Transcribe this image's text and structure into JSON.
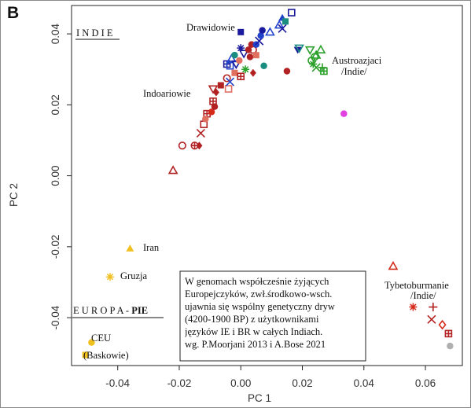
{
  "figure_label": "B",
  "chart_data": {
    "type": "scatter",
    "xlabel": "PC 1",
    "ylabel": "PC 2",
    "xlim": [
      -0.055,
      0.072
    ],
    "ylim": [
      -0.0535,
      0.048
    ],
    "xticks": [
      "-0.04",
      "-0.02",
      "0.00",
      "0.02",
      "0.04",
      "0.06"
    ],
    "yticks": [
      "-0.04",
      "-0.02",
      "0.00",
      "0.02",
      "0.04"
    ],
    "xtick_values": [
      -0.04,
      -0.02,
      0.0,
      0.02,
      0.04,
      0.06
    ],
    "ytick_values": [
      -0.04,
      -0.02,
      0.0,
      0.02,
      0.04
    ],
    "grid": false,
    "group_labels": {
      "indie": "I N D I E",
      "drawidowie": "Drawidowie",
      "austroazjaci": "Austroazjaci",
      "austroazjaci_2": "/Indie/",
      "indoariowie": "Indoariowie",
      "iran": "Iran",
      "gruzja": "Gruzja",
      "europa_prefix": "E U R O P A  - ",
      "europa_pie": "PIE",
      "ceu": "CEU",
      "baskowie": "(Baskowie)",
      "tybetoburmanie": "Tybetoburmanie",
      "tybetoburmanie_2": "/Indie/"
    },
    "annotation": [
      "W genomach współcześnie żyjących",
      "Europejczyków, zwł.środkowo-wsch.",
      "ujawnia się wspólny genetyczny dryw",
      "(4200-1900 BP) z użytkownikami",
      "języków IE i BR w całych Indiach.",
      "wg. P.Moorjani 2013 i A.Bose 2021"
    ],
    "colors": {
      "dark_red": "#b22222",
      "red": "#d42a1a",
      "navy": "#1a1a9c",
      "blue": "#2244cc",
      "teal": "#1a8c80",
      "green": "#2aa02a",
      "magenta": "#e040e0",
      "gold": "#f0c020",
      "grey": "#b0b0b0",
      "salmon": "#e07060"
    },
    "series": [
      {
        "group": "Europa",
        "points": [
          {
            "x": -0.036,
            "y": -0.0205,
            "shape": "triangle-filled",
            "color": "gold"
          },
          {
            "x": -0.0425,
            "y": -0.0285,
            "shape": "star",
            "color": "gold"
          },
          {
            "x": -0.0485,
            "y": -0.047,
            "shape": "circle-filled",
            "color": "gold"
          },
          {
            "x": -0.0505,
            "y": -0.0505,
            "shape": "square-filled",
            "color": "gold"
          }
        ]
      },
      {
        "group": "Indie",
        "points": [
          {
            "x": -0.022,
            "y": 0.0015,
            "shape": "triangle-open",
            "color": "dark_red"
          },
          {
            "x": -0.019,
            "y": 0.0085,
            "shape": "circle-open",
            "color": "dark_red"
          },
          {
            "x": -0.015,
            "y": 0.0085,
            "shape": "circle-cross",
            "color": "dark_red"
          },
          {
            "x": -0.0135,
            "y": 0.0085,
            "shape": "diamond-filled",
            "color": "dark_red"
          },
          {
            "x": -0.013,
            "y": 0.012,
            "shape": "x",
            "color": "dark_red"
          },
          {
            "x": -0.012,
            "y": 0.0145,
            "shape": "square-open",
            "color": "dark_red"
          },
          {
            "x": -0.011,
            "y": 0.0175,
            "shape": "square-cross",
            "color": "dark_red"
          },
          {
            "x": -0.0115,
            "y": 0.016,
            "shape": "circle-filled",
            "color": "salmon"
          },
          {
            "x": -0.0095,
            "y": 0.018,
            "shape": "circle-filled",
            "color": "red"
          },
          {
            "x": -0.009,
            "y": 0.021,
            "shape": "square-cross",
            "color": "dark_red"
          },
          {
            "x": -0.0085,
            "y": 0.0195,
            "shape": "circle-filled",
            "color": "dark_red"
          },
          {
            "x": -0.008,
            "y": 0.0235,
            "shape": "diamond-filled",
            "color": "dark_red"
          },
          {
            "x": -0.009,
            "y": 0.0245,
            "shape": "triangle-down-open",
            "color": "dark_red"
          },
          {
            "x": -0.0065,
            "y": 0.0255,
            "shape": "square-filled",
            "color": "dark_red"
          },
          {
            "x": -0.0045,
            "y": 0.0275,
            "shape": "circle-open",
            "color": "dark_red"
          },
          {
            "x": -0.004,
            "y": 0.0245,
            "shape": "square-open",
            "color": "salmon"
          },
          {
            "x": -0.0035,
            "y": 0.0265,
            "shape": "x",
            "color": "blue"
          },
          {
            "x": -0.0045,
            "y": 0.0315,
            "shape": "square-cross",
            "color": "navy"
          },
          {
            "x": -0.0035,
            "y": 0.031,
            "shape": "square-open",
            "color": "blue"
          },
          {
            "x": -0.003,
            "y": 0.033,
            "shape": "triangle-open",
            "color": "blue"
          },
          {
            "x": -0.002,
            "y": 0.034,
            "shape": "circle-filled",
            "color": "teal"
          },
          {
            "x": -0.0015,
            "y": 0.0315,
            "shape": "triangle-down-open",
            "color": "navy"
          },
          {
            "x": -0.002,
            "y": 0.029,
            "shape": "square-filled",
            "color": "salmon"
          },
          {
            "x": -0.0005,
            "y": 0.0325,
            "shape": "circle-filled",
            "color": "salmon"
          },
          {
            "x": 0.0,
            "y": 0.036,
            "shape": "star",
            "color": "navy"
          },
          {
            "x": 0.001,
            "y": 0.0345,
            "shape": "triangle-down-open",
            "color": "navy"
          },
          {
            "x": 0.0015,
            "y": 0.03,
            "shape": "star",
            "color": "green"
          },
          {
            "x": 0.0,
            "y": 0.028,
            "shape": "square-cross",
            "color": "dark_red"
          },
          {
            "x": 0.0025,
            "y": 0.0355,
            "shape": "circle-filled",
            "color": "dark_red"
          },
          {
            "x": 0.003,
            "y": 0.0335,
            "shape": "circle-filled",
            "color": "dark_red"
          },
          {
            "x": 0.0035,
            "y": 0.037,
            "shape": "circle-filled",
            "color": "dark_red"
          },
          {
            "x": 0.004,
            "y": 0.0355,
            "shape": "circle-open",
            "color": "dark_red"
          },
          {
            "x": 0.004,
            "y": 0.029,
            "shape": "diamond-filled",
            "color": "dark_red"
          },
          {
            "x": 0.005,
            "y": 0.034,
            "shape": "square-filled",
            "color": "salmon"
          },
          {
            "x": 0.005,
            "y": 0.037,
            "shape": "circle-filled",
            "color": "blue"
          },
          {
            "x": 0.006,
            "y": 0.038,
            "shape": "x",
            "color": "navy"
          },
          {
            "x": 0.0065,
            "y": 0.0395,
            "shape": "circle-filled",
            "color": "blue"
          },
          {
            "x": 0.0075,
            "y": 0.031,
            "shape": "circle-filled",
            "color": "teal"
          },
          {
            "x": 0.007,
            "y": 0.041,
            "shape": "circle-filled",
            "color": "navy"
          },
          {
            "x": 0.0,
            "y": 0.0405,
            "shape": "square-filled",
            "color": "navy"
          },
          {
            "x": 0.0095,
            "y": 0.0405,
            "shape": "triangle-open",
            "color": "blue"
          },
          {
            "x": 0.0125,
            "y": 0.0425,
            "shape": "triangle-open",
            "color": "blue"
          },
          {
            "x": 0.0135,
            "y": 0.0415,
            "shape": "x",
            "color": "navy"
          },
          {
            "x": 0.0135,
            "y": 0.0445,
            "shape": "triangle-filled",
            "color": "blue"
          },
          {
            "x": 0.0145,
            "y": 0.0435,
            "shape": "square-filled",
            "color": "teal"
          },
          {
            "x": 0.0165,
            "y": 0.046,
            "shape": "square-open",
            "color": "navy"
          },
          {
            "x": 0.015,
            "y": 0.0295,
            "shape": "circle-filled",
            "color": "dark_red"
          },
          {
            "x": 0.0185,
            "y": 0.0355,
            "shape": "triangle-down-filled",
            "color": "navy"
          },
          {
            "x": 0.019,
            "y": 0.036,
            "shape": "triangle-down-open",
            "color": "teal"
          },
          {
            "x": 0.0225,
            "y": 0.0355,
            "shape": "triangle-down-open",
            "color": "green"
          },
          {
            "x": 0.023,
            "y": 0.0325,
            "shape": "circle-open",
            "color": "green"
          },
          {
            "x": 0.0235,
            "y": 0.0315,
            "shape": "star",
            "color": "green"
          },
          {
            "x": 0.0245,
            "y": 0.0305,
            "shape": "x",
            "color": "green"
          },
          {
            "x": 0.024,
            "y": 0.0335,
            "shape": "circle-open",
            "color": "green"
          },
          {
            "x": 0.0245,
            "y": 0.034,
            "shape": "triangle-open",
            "color": "green"
          },
          {
            "x": 0.026,
            "y": 0.0355,
            "shape": "triangle-open",
            "color": "green"
          },
          {
            "x": 0.0265,
            "y": 0.0305,
            "shape": "plus",
            "color": "green"
          },
          {
            "x": 0.027,
            "y": 0.0295,
            "shape": "square-cross",
            "color": "green"
          },
          {
            "x": 0.0335,
            "y": 0.0175,
            "shape": "circle-filled",
            "color": "magenta"
          },
          {
            "x": 0.0495,
            "y": -0.0255,
            "shape": "triangle-open",
            "color": "red"
          },
          {
            "x": 0.056,
            "y": -0.037,
            "shape": "star",
            "color": "red"
          },
          {
            "x": 0.0625,
            "y": -0.037,
            "shape": "plus",
            "color": "dark_red"
          },
          {
            "x": 0.062,
            "y": -0.0405,
            "shape": "x",
            "color": "dark_red"
          },
          {
            "x": 0.0655,
            "y": -0.042,
            "shape": "diamond-open",
            "color": "red"
          },
          {
            "x": 0.0675,
            "y": -0.0445,
            "shape": "square-cross",
            "color": "dark_red"
          },
          {
            "x": 0.068,
            "y": -0.048,
            "shape": "circle-filled",
            "color": "grey"
          }
        ]
      }
    ]
  }
}
